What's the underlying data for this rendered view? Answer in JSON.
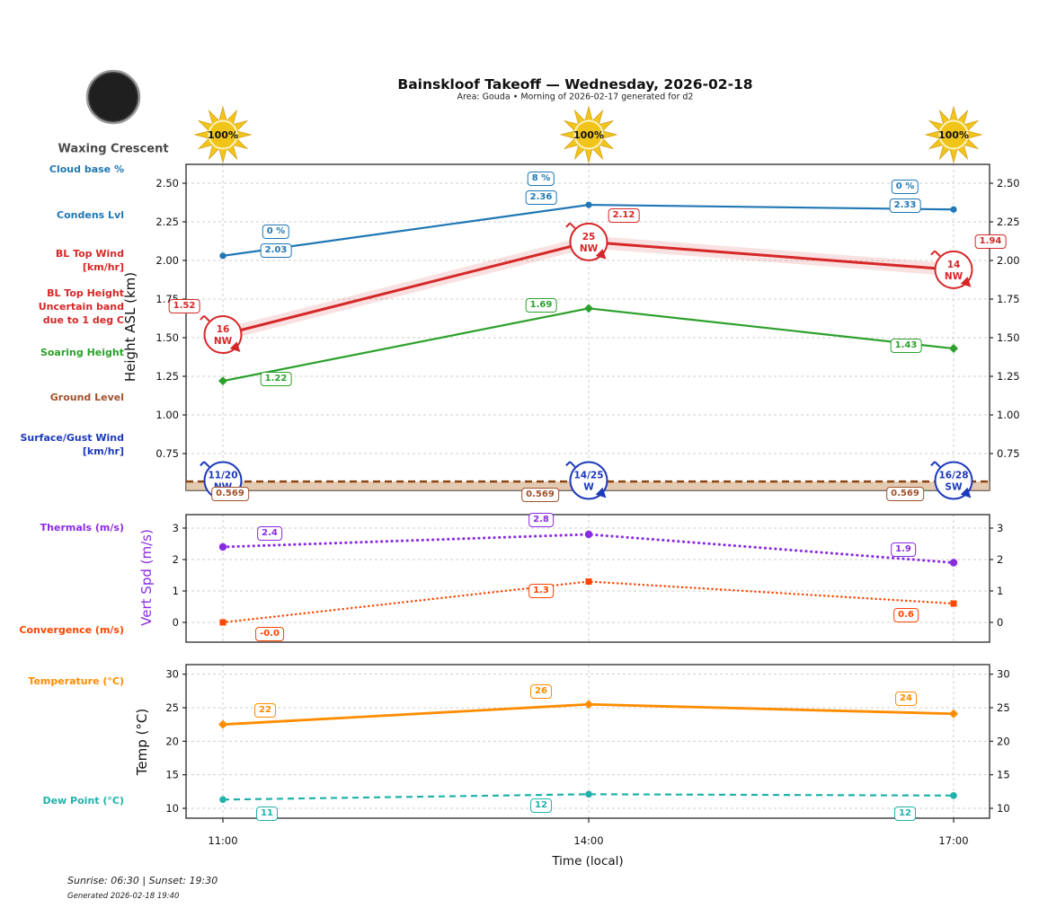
{
  "header": {
    "title": "Bainskloof Takeoff — Wednesday, 2026-02-18",
    "subtitle": "Area: Gouda • Morning of 2026-02-17 generated for d2"
  },
  "moon": {
    "label": "Waxing Crescent"
  },
  "left_labels": {
    "cloud_base": "Cloud base %",
    "condens": "Condens Lvl",
    "bl_top_wind": [
      "BL Top Wind",
      "[km/hr]"
    ],
    "bl_top_height": [
      "BL Top Height",
      "Uncertain band",
      "due to 1 deg C"
    ],
    "soaring": "Soaring Height",
    "ground": "Ground Level",
    "surface_wind": [
      "Surface/Gust Wind",
      "[km/hr]"
    ],
    "thermals": "Thermals (m/s)",
    "convergence": "Convergence (m/s)",
    "temperature": "Temperature (°C)",
    "dew_point": "Dew Point (°C)"
  },
  "xaxis": {
    "label": "Time (local)",
    "ticks": [
      "11:00",
      "14:00",
      "17:00"
    ]
  },
  "footer": {
    "sun": "Sunrise: 06:30 | Sunset: 19:30",
    "generated": "Generated 2026-02-18 19:40"
  },
  "chart_data": {
    "type": "line",
    "x": [
      "11:00",
      "14:00",
      "17:00"
    ],
    "grid": true,
    "sun_pct": [
      "100%",
      "100%",
      "100%"
    ],
    "panels": [
      {
        "name": "height",
        "ylabel": "Height ASL (km)",
        "yticks": [
          0.75,
          1.0,
          1.25,
          1.5,
          1.75,
          2.0,
          2.25,
          2.5
        ],
        "ylim": [
          0.51,
          2.62
        ],
        "series": [
          {
            "name": "Condens Lvl",
            "color": "#1f77b4",
            "style": "solid",
            "marker": "circle",
            "values": [
              2.03,
              2.36,
              2.33
            ],
            "labels": [
              "2.03",
              "2.36",
              "2.33"
            ],
            "cloud_base_pct": [
              "0 %",
              "8 %",
              "0 %"
            ]
          },
          {
            "name": "BL Top Height",
            "color": "#d62728",
            "style": "solid+uncertainty-band",
            "values": [
              1.52,
              2.12,
              1.94
            ],
            "labels": [
              "1.52",
              "2.12",
              "1.94"
            ],
            "wind_kmh": [
              {
                "speed": "16",
                "dir": "NW"
              },
              {
                "speed": "25",
                "dir": "NW"
              },
              {
                "speed": "14",
                "dir": "NW"
              }
            ]
          },
          {
            "name": "Soaring Height",
            "color": "#2ca02c",
            "style": "solid",
            "marker": "diamond",
            "values": [
              1.22,
              1.69,
              1.43
            ],
            "labels": [
              "1.22",
              "1.69",
              "1.43"
            ]
          },
          {
            "name": "Ground Level",
            "color": "#8b4513",
            "band_color": "#d9b48f",
            "style": "dashed",
            "values": [
              0.569,
              0.569,
              0.569
            ],
            "labels": [
              "0.569",
              "0.569",
              "0.569"
            ]
          }
        ],
        "surface_gust_wind": {
          "color": "#1c39bb",
          "points": [
            {
              "label": "11/20",
              "dir": "NW"
            },
            {
              "label": "14/25",
              "dir": "W"
            },
            {
              "label": "16/28",
              "dir": "SW"
            }
          ]
        }
      },
      {
        "name": "vert_speed",
        "ylabel": "Vert Spd (m/s)",
        "yticks": [
          0,
          1,
          2,
          3
        ],
        "ylim": [
          -0.63,
          3.43
        ],
        "series": [
          {
            "name": "Thermals",
            "color": "#8a2be2",
            "style": "dotted",
            "marker": "circle",
            "values": [
              2.4,
              2.8,
              1.9
            ],
            "labels": [
              "2.4",
              "2.8",
              "1.9"
            ]
          },
          {
            "name": "Convergence",
            "color": "#ff4500",
            "style": "dotted",
            "marker": "square",
            "values": [
              0.0,
              1.3,
              0.6
            ],
            "labels": [
              "-0.0",
              "1.3",
              "0.6"
            ]
          }
        ]
      },
      {
        "name": "temperature",
        "ylabel": "Temp (°C)",
        "yticks": [
          10,
          15,
          20,
          25,
          30
        ],
        "ylim": [
          8.5,
          31.4
        ],
        "series": [
          {
            "name": "Temperature",
            "color": "#ff8c00",
            "style": "solid",
            "marker": "diamond",
            "values": [
              22.5,
              25.5,
              24.1
            ],
            "labels": [
              "22",
              "26",
              "24"
            ]
          },
          {
            "name": "Dew Point",
            "color": "#20b2aa",
            "style": "dashed",
            "marker": "circle",
            "values": [
              11.3,
              12.1,
              11.9
            ],
            "labels": [
              "11",
              "12",
              "12"
            ]
          }
        ]
      }
    ]
  }
}
